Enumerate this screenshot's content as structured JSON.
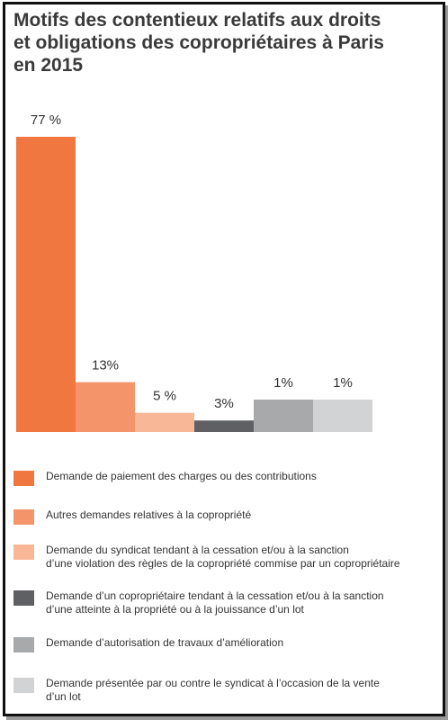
{
  "title_lines": [
    "Motifs des contentieux relatifs aux droits",
    "et obligations des copropriétaires à Paris",
    "en 2015"
  ],
  "chart_data": {
    "type": "bar",
    "categories": [
      "Demande de paiement des charges ou des contributions",
      "Autres demandes relatives à la copropriété",
      "Demande du syndicat tendant à la cessation et/ou à la sanction d’une violation des règles de la copropriété commise par un copropriétaire",
      "Demande d’un copropriétaire tendant à la cessation et/ou à la sanction d’une atteinte à la propriété ou à la jouissance d’un lot",
      "Demande d’autorisation de travaux d’amélioration",
      "Demande présentée par ou contre le syndicat à l’occasion de la vente d’un lot"
    ],
    "values": [
      77,
      13,
      5,
      3,
      1,
      1
    ],
    "value_labels": [
      "77 %",
      "13%",
      "5 %",
      "3%",
      "1%",
      "1%"
    ],
    "colors": [
      "#f07840",
      "#f4946a",
      "#f8b898",
      "#5f6063",
      "#a8a9ab",
      "#d2d3d5"
    ],
    "legend": [
      [
        "Demande de paiement des charges ou des contributions"
      ],
      [
        "Autres demandes relatives à la copropriété"
      ],
      [
        "Demande du syndicat tendant à la cessation et/ou à la sanction",
        "d’une violation des règles de la copropriété commise par un copropriétaire"
      ],
      [
        "Demande d’un copropriétaire tendant à la cessation et/ou à la sanction",
        "d’une atteinte à la propriété ou à la jouissance d’un lot"
      ],
      [
        "Demande d’autorisation de travaux d’amélioration"
      ],
      [
        "Demande présentée par ou contre le syndicat à l’occasion de la vente",
        "d’un lot"
      ]
    ]
  }
}
